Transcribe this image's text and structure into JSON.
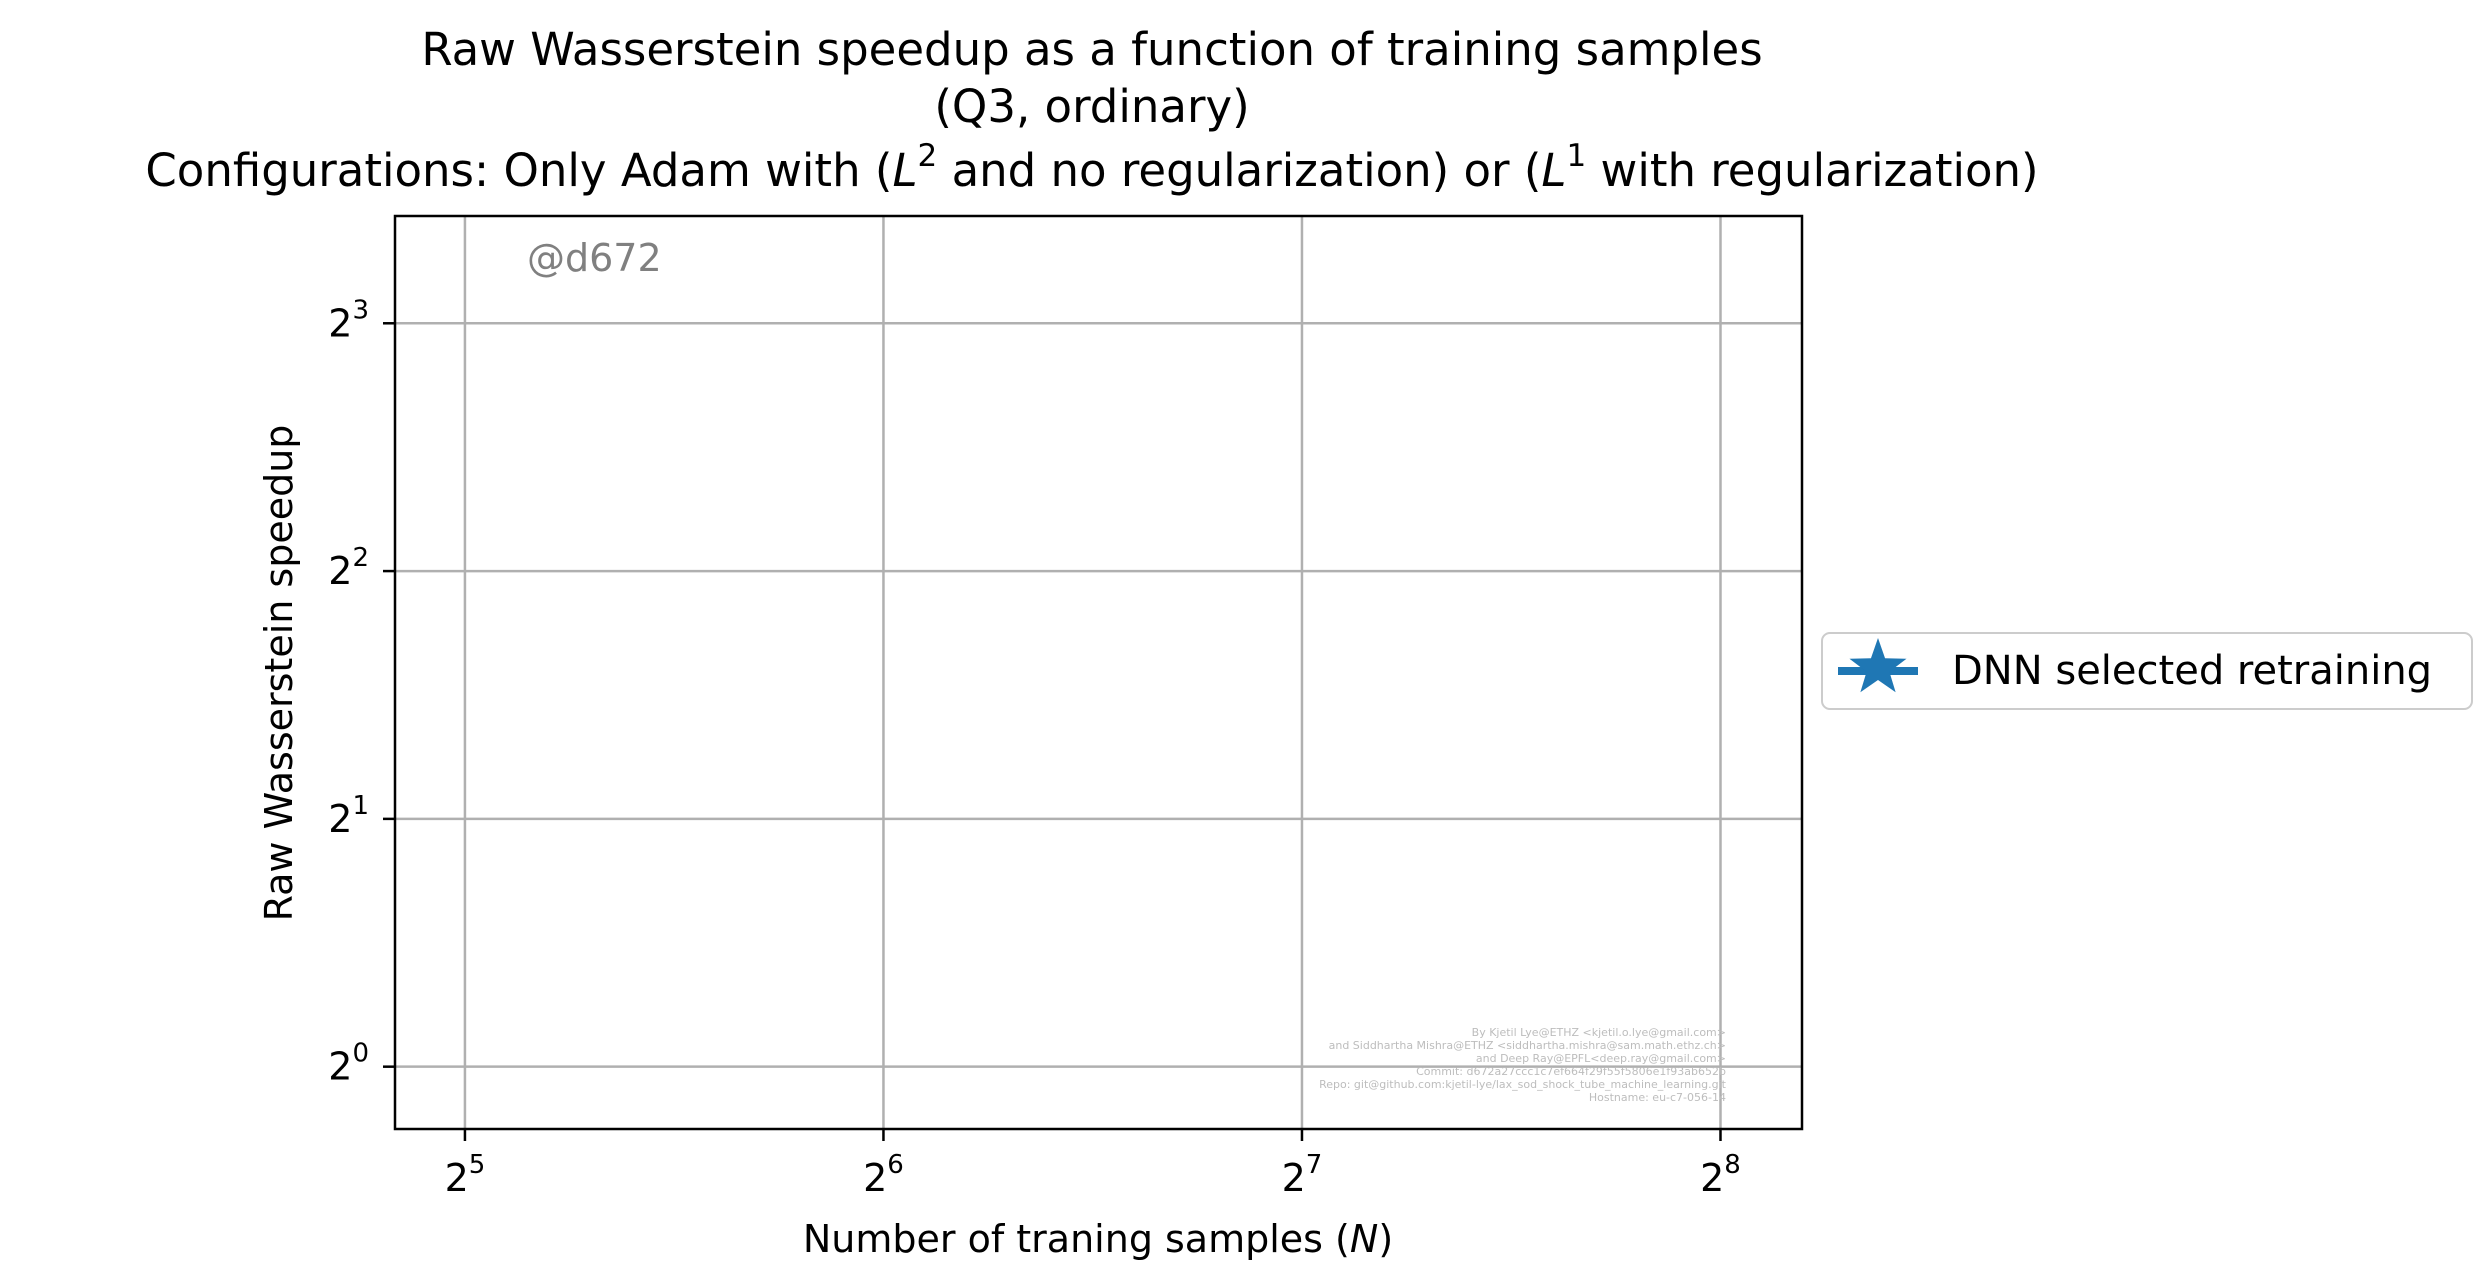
{
  "chart_data": {
    "type": "line",
    "title_lines": [
      "Raw Wasserstein speedup as a function of training samples",
      "(Q3, ordinary)",
      "Configurations: Only Adam with ($L^2$ and no regularization) or ($L^1$ with regularization)"
    ],
    "title_line3_parts": {
      "pre": "Configurations: Only Adam with (",
      "L1": "L",
      "sup1": "2",
      "mid": " and no regularization) or (",
      "L2": "L",
      "sup2": "1",
      "post": " with regularization)"
    },
    "xlabel_parts": {
      "pre": "Number of traning samples (",
      "var": "N",
      "post": ")"
    },
    "ylabel": "Raw Wasserstein speedup",
    "xscale": "log2",
    "yscale": "log2",
    "xlim": [
      28.5,
      293
    ],
    "ylim": [
      0.84,
      10.8
    ],
    "grid": true,
    "x_ticks": [
      {
        "value": 32,
        "base": "2",
        "exp": "5"
      },
      {
        "value": 64,
        "base": "2",
        "exp": "6"
      },
      {
        "value": 128,
        "base": "2",
        "exp": "7"
      },
      {
        "value": 256,
        "base": "2",
        "exp": "8"
      }
    ],
    "y_ticks": [
      {
        "value": 1,
        "base": "2",
        "exp": "0"
      },
      {
        "value": 2,
        "base": "2",
        "exp": "1"
      },
      {
        "value": 4,
        "base": "2",
        "exp": "2"
      },
      {
        "value": 8,
        "base": "2",
        "exp": "3"
      }
    ],
    "series": [
      {
        "name": "DNN selected retraining",
        "color": "#1f77b4",
        "marker": "star",
        "x": [],
        "y": []
      }
    ],
    "legend_placement": "right, outside axes",
    "watermark": "@d672",
    "footer_lines": [
      "By Kjetil Lye@ETHZ <kjetil.o.lye@gmail.com>",
      "and Siddhartha Mishra@ETHZ <siddhartha.mishra@sam.math.ethz.ch>",
      "and Deep Ray@EPFL<deep.ray@gmail.com>",
      "Commit: d672a27ccc1c7ef664f29f55f5806e1f93ab652b",
      "Repo: git@github.com:kjetil-lye/lax_sod_shock_tube_machine_learning.git",
      "Hostname: eu-c7-056-14"
    ]
  }
}
